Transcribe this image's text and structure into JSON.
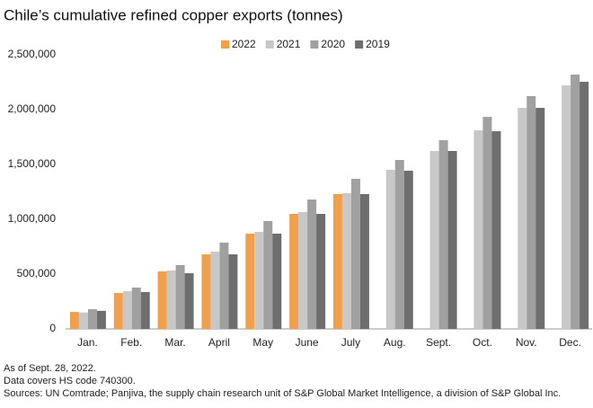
{
  "chart_data": {
    "type": "bar",
    "title": "Chile’s cumulative refined copper exports (tonnes)",
    "categories": [
      "Jan.",
      "Feb.",
      "Mar.",
      "April",
      "May",
      "June",
      "July",
      "Aug.",
      "Sept.",
      "Oct.",
      "Nov.",
      "Dec."
    ],
    "series": [
      {
        "name": "2022",
        "color": "#f0a04b",
        "values": [
          155000,
          328000,
          525000,
          680000,
          869000,
          1049000,
          1230000,
          null,
          null,
          null,
          null,
          null
        ]
      },
      {
        "name": "2021",
        "color": "#c8c8c8",
        "values": [
          150000,
          344000,
          533000,
          705000,
          885000,
          1066000,
          1238000,
          1451000,
          1623000,
          1811000,
          2016000,
          2221000
        ]
      },
      {
        "name": "2020",
        "color": "#a0a0a0",
        "values": [
          180000,
          377000,
          582000,
          787000,
          984000,
          1180000,
          1369000,
          1541000,
          1721000,
          1934000,
          2123000,
          2320000
        ]
      },
      {
        "name": "2019",
        "color": "#6e6e6e",
        "values": [
          165000,
          336000,
          508000,
          680000,
          869000,
          1049000,
          1230000,
          1443000,
          1623000,
          1803000,
          2016000,
          2254000
        ]
      }
    ],
    "ylim": [
      0,
      2500000
    ],
    "yticks": [
      0,
      {
        "value": 500000,
        "label": "500,000"
      },
      {
        "value": 1000000,
        "label": "1,000,000"
      },
      {
        "value": 1500000,
        "label": "1,500,000"
      },
      {
        "value": 2000000,
        "label": "2,000,000"
      },
      {
        "value": 2500000,
        "label": "2,500,000"
      }
    ],
    "grid": false,
    "notes": [
      "As of Sept. 28, 2022.",
      "Data covers HS code 740300.",
      "Sources: UN Comtrade; Panjiva, the supply chain research unit of S&P Global Market Intelligence, a division of S&P Global Inc."
    ]
  }
}
